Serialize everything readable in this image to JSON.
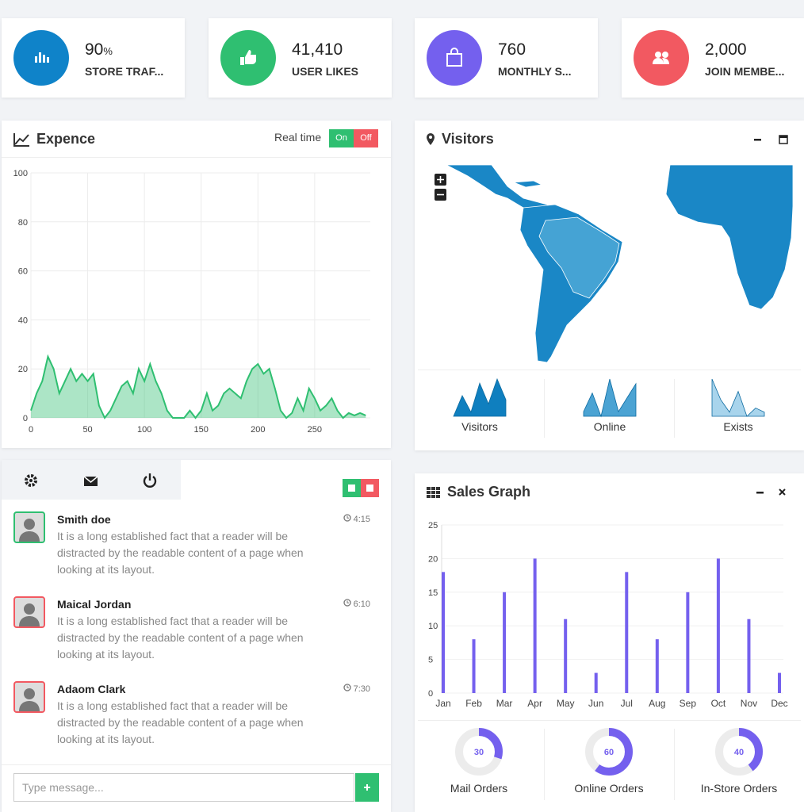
{
  "stats": [
    {
      "value": "90",
      "unit": "%",
      "label": "STORE TRAF...",
      "color": "#0f83c9"
    },
    {
      "value": "41,410",
      "label": "USER LIKES",
      "color": "#2fbf71"
    },
    {
      "value": "760",
      "label": "MONTHLY S...",
      "color": "#7460ee"
    },
    {
      "value": "2,000",
      "label": "JOIN MEMBE...",
      "color": "#f25961"
    }
  ],
  "expense": {
    "toggle_label": "Real time",
    "toggle_on": "On",
    "toggle_off": "Off"
  },
  "visitors": {
    "title": "Visitors"
  },
  "chat": {
    "messages": [
      {
        "name": "Smith doe",
        "time": "4:15",
        "text": "It is a long established fact that a reader will be distracted by the readable content of a page when looking at its layout.",
        "border": "#2fbf71"
      },
      {
        "name": "Maical Jordan",
        "time": "6:10",
        "text": "It is a long established fact that a reader will be distracted by the readable content of a page when looking at its layout.",
        "border": "#f25961"
      },
      {
        "name": "Adaom Clark",
        "time": "7:30",
        "text": "It is a long established fact that a reader will be distracted by the readable content of a page when looking at its layout.",
        "border": "#f25961"
      }
    ],
    "input_placeholder": "Type message..."
  },
  "chart_data": [
    {
      "type": "line",
      "title": "Expence",
      "color": "#2fbf71",
      "grid": true,
      "x": [
        0,
        5,
        10,
        15,
        20,
        25,
        30,
        35,
        40,
        45,
        50,
        55,
        60,
        65,
        70,
        75,
        80,
        85,
        90,
        95,
        100,
        105,
        110,
        115,
        120,
        125,
        130,
        135,
        140,
        145,
        150,
        155,
        160,
        165,
        170,
        175,
        180,
        185,
        190,
        195,
        200,
        205,
        210,
        215,
        220,
        225,
        230,
        235,
        240,
        245,
        250,
        255,
        260,
        265,
        270,
        275,
        280,
        285,
        290,
        295
      ],
      "values": [
        3,
        10,
        15,
        25,
        20,
        10,
        15,
        20,
        15,
        18,
        15,
        18,
        5,
        0,
        3,
        8,
        13,
        15,
        10,
        20,
        15,
        22,
        15,
        10,
        3,
        0,
        0,
        0,
        3,
        0,
        3,
        10,
        3,
        5,
        10,
        12,
        10,
        8,
        15,
        20,
        22,
        18,
        20,
        12,
        3,
        0,
        2,
        8,
        3,
        12,
        8,
        3,
        5,
        8,
        3,
        0,
        2,
        1,
        2,
        1
      ],
      "xlim": [
        0,
        299
      ],
      "xticks": [
        0,
        50,
        100,
        150,
        200,
        250
      ],
      "ylim": [
        0,
        100
      ],
      "yticks": [
        0,
        20,
        40,
        60,
        80,
        100
      ]
    },
    {
      "type": "bar",
      "title": "Sales Graph",
      "color": "#7460ee",
      "grid": true,
      "categories": [
        "Jan",
        "Feb",
        "Mar",
        "Apr",
        "May",
        "Jun",
        "Jul",
        "Aug",
        "Sep",
        "Oct",
        "Nov",
        "Dec"
      ],
      "values": [
        18,
        8,
        15,
        20,
        11,
        3,
        18,
        8,
        15,
        20,
        11,
        3
      ],
      "ylim": [
        0,
        25
      ],
      "yticks": [
        0,
        5,
        10,
        15,
        20,
        25
      ]
    },
    {
      "type": "area",
      "series": [
        {
          "name": "Visitors",
          "color": "#0f7fbf",
          "values": [
            1,
            6,
            2,
            9,
            4,
            10,
            5
          ]
        },
        {
          "name": "Online",
          "color": "#4ba3d3",
          "values": [
            3,
            7,
            2,
            10,
            3,
            6,
            9
          ]
        },
        {
          "name": "Exists",
          "color": "#a8d4ec",
          "values": [
            10,
            5,
            2,
            7,
            1,
            3,
            2
          ]
        }
      ]
    },
    {
      "type": "donut",
      "color": "#7460ee",
      "categories": [
        "Mail Orders",
        "Online Orders",
        "In-Store Orders"
      ],
      "values": [
        30,
        60,
        40
      ]
    }
  ]
}
